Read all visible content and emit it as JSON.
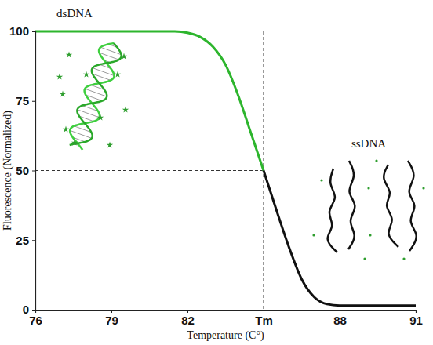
{
  "chart_data": {
    "type": "line",
    "x_label": "Temperature (C°)",
    "y_label": "Fluorescence (Normalized)",
    "x": [
      76,
      76.5,
      77,
      77.5,
      78,
      78.5,
      79,
      79.5,
      80,
      80.5,
      81,
      81.5,
      82,
      82.5,
      83,
      83.5,
      84,
      84.5,
      85,
      85.5,
      86,
      86.5,
      87,
      87.5,
      88,
      88.5,
      89,
      89.5,
      90,
      90.5,
      91
    ],
    "series": [
      {
        "color": "#2db52d",
        "values": [
          100,
          100,
          100,
          100,
          100,
          100,
          100,
          100,
          100,
          100,
          100,
          100,
          99.5,
          98,
          94.5,
          88,
          77,
          63.5,
          50,
          null,
          null,
          null,
          null,
          null,
          null,
          null,
          null,
          null,
          null,
          null,
          null
        ]
      },
      {
        "color": "#111111",
        "values": [
          null,
          null,
          null,
          null,
          null,
          null,
          null,
          null,
          null,
          null,
          null,
          null,
          null,
          null,
          null,
          null,
          null,
          null,
          50,
          36,
          22.5,
          11,
          4.5,
          2,
          1.5,
          1.5,
          1.5,
          1.5,
          1.5,
          1.5,
          1.5
        ]
      }
    ],
    "xlim": [
      76,
      91
    ],
    "ylim": [
      0,
      100
    ],
    "xticks": [
      76,
      79,
      82,
      {
        "value": 85,
        "label": "Tm"
      },
      88,
      91
    ],
    "yticks": [
      0,
      25,
      50,
      75,
      100
    ],
    "reference_lines": [
      {
        "axis": "x",
        "value": 85,
        "line_style": "dashed"
      },
      {
        "axis": "y",
        "value": 50,
        "line_style": "dashed"
      }
    ],
    "annotations": [
      {
        "text": "dsDNA"
      },
      {
        "text": "ssDNA"
      }
    ],
    "grid": false
  }
}
